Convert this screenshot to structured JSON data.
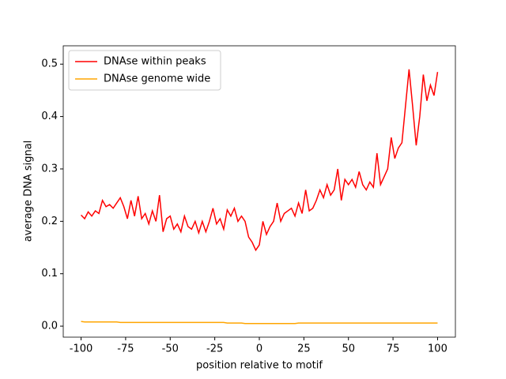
{
  "chart_data": {
    "type": "line",
    "xlabel": "position relative to motif",
    "ylabel": "average DNA signal",
    "x": [
      -100,
      -98,
      -96,
      -94,
      -92,
      -90,
      -88,
      -86,
      -84,
      -82,
      -80,
      -78,
      -76,
      -74,
      -72,
      -70,
      -68,
      -66,
      -64,
      -62,
      -60,
      -58,
      -56,
      -54,
      -52,
      -50,
      -48,
      -46,
      -44,
      -42,
      -40,
      -38,
      -36,
      -34,
      -32,
      -30,
      -28,
      -26,
      -24,
      -22,
      -20,
      -18,
      -16,
      -14,
      -12,
      -10,
      -8,
      -6,
      -4,
      -2,
      0,
      2,
      4,
      6,
      8,
      10,
      12,
      14,
      16,
      18,
      20,
      22,
      24,
      26,
      28,
      30,
      32,
      34,
      36,
      38,
      40,
      42,
      44,
      46,
      48,
      50,
      52,
      54,
      56,
      58,
      60,
      62,
      64,
      66,
      68,
      70,
      72,
      74,
      76,
      78,
      80,
      82,
      84,
      86,
      88,
      90,
      92,
      94,
      96,
      98,
      100
    ],
    "series": [
      {
        "name": "DNAse within peaks",
        "color": "#ff0000",
        "values": [
          0.212,
          0.205,
          0.218,
          0.21,
          0.22,
          0.215,
          0.24,
          0.228,
          0.232,
          0.225,
          0.235,
          0.245,
          0.228,
          0.205,
          0.24,
          0.21,
          0.248,
          0.205,
          0.215,
          0.195,
          0.22,
          0.2,
          0.25,
          0.18,
          0.205,
          0.21,
          0.185,
          0.195,
          0.18,
          0.21,
          0.19,
          0.185,
          0.2,
          0.178,
          0.2,
          0.18,
          0.2,
          0.225,
          0.195,
          0.205,
          0.185,
          0.222,
          0.21,
          0.225,
          0.2,
          0.21,
          0.2,
          0.17,
          0.16,
          0.145,
          0.155,
          0.2,
          0.175,
          0.19,
          0.2,
          0.235,
          0.2,
          0.215,
          0.22,
          0.225,
          0.21,
          0.235,
          0.215,
          0.26,
          0.22,
          0.225,
          0.24,
          0.26,
          0.245,
          0.27,
          0.25,
          0.26,
          0.3,
          0.24,
          0.28,
          0.27,
          0.28,
          0.265,
          0.295,
          0.27,
          0.26,
          0.275,
          0.265,
          0.33,
          0.27,
          0.285,
          0.3,
          0.36,
          0.32,
          0.34,
          0.35,
          0.42,
          0.49,
          0.42,
          0.345,
          0.4,
          0.48,
          0.43,
          0.46,
          0.44,
          0.485
        ]
      },
      {
        "name": "DNAse genome wide",
        "color": "#ffa500",
        "values": [
          0.009,
          0.008,
          0.008,
          0.008,
          0.008,
          0.008,
          0.008,
          0.008,
          0.008,
          0.008,
          0.008,
          0.007,
          0.007,
          0.007,
          0.007,
          0.007,
          0.007,
          0.007,
          0.007,
          0.007,
          0.007,
          0.007,
          0.007,
          0.007,
          0.007,
          0.007,
          0.007,
          0.007,
          0.007,
          0.007,
          0.007,
          0.007,
          0.007,
          0.007,
          0.007,
          0.007,
          0.007,
          0.007,
          0.007,
          0.007,
          0.007,
          0.006,
          0.006,
          0.006,
          0.006,
          0.006,
          0.005,
          0.005,
          0.005,
          0.005,
          0.005,
          0.005,
          0.005,
          0.005,
          0.005,
          0.005,
          0.005,
          0.005,
          0.005,
          0.005,
          0.005,
          0.006,
          0.006,
          0.006,
          0.006,
          0.006,
          0.006,
          0.006,
          0.006,
          0.006,
          0.006,
          0.006,
          0.006,
          0.006,
          0.006,
          0.006,
          0.006,
          0.006,
          0.006,
          0.006,
          0.006,
          0.006,
          0.006,
          0.006,
          0.006,
          0.006,
          0.006,
          0.006,
          0.006,
          0.006,
          0.006,
          0.006,
          0.006,
          0.006,
          0.006,
          0.006,
          0.006,
          0.006,
          0.006,
          0.006,
          0.006
        ]
      }
    ],
    "xlim": [
      -110,
      110
    ],
    "ylim": [
      -0.021,
      0.535
    ],
    "xticks": [
      -100,
      -75,
      -50,
      -25,
      0,
      25,
      50,
      75,
      100
    ],
    "yticks": [
      {
        "value": 0,
        "label": "0.0"
      },
      0.1,
      0.2,
      0.3,
      0.4,
      0.5
    ],
    "legend": "upper left"
  }
}
